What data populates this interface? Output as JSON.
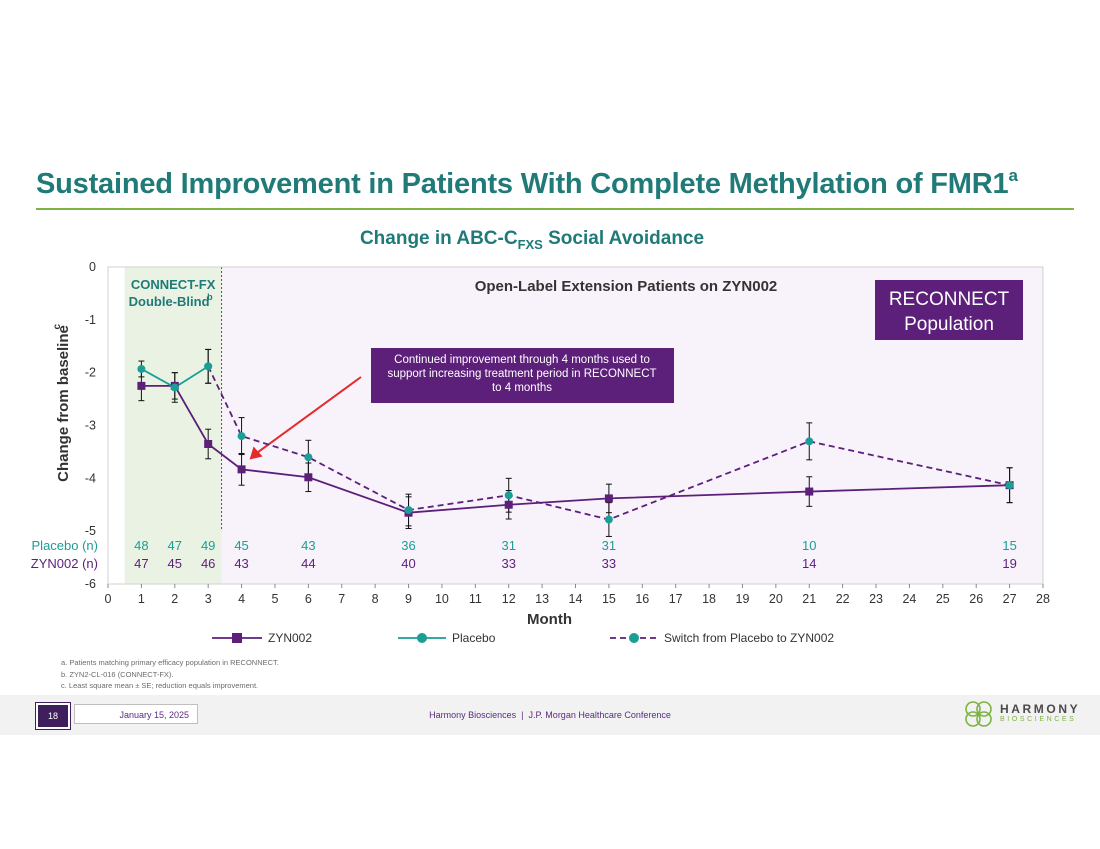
{
  "title": {
    "text": "Sustained Improvement in Patients With Complete Methylation of FMR1",
    "sup": "a"
  },
  "chart_title": {
    "pre": "Change in ABC-C",
    "sub": "FXS",
    "post": " Social Avoidance"
  },
  "chart_data": {
    "type": "line",
    "xlabel": "Month",
    "ylabel": "Change from baseline",
    "ylabel_sup": "c",
    "xlim": [
      0,
      28
    ],
    "ylim": [
      -6,
      0
    ],
    "xticks": [
      0,
      1,
      2,
      3,
      4,
      5,
      6,
      7,
      8,
      9,
      10,
      11,
      12,
      13,
      14,
      15,
      16,
      17,
      18,
      19,
      20,
      21,
      22,
      23,
      24,
      25,
      26,
      27,
      28
    ],
    "yticks": [
      0,
      -1,
      -2,
      -3,
      -4,
      -5,
      -6
    ],
    "regions": {
      "double_blind": {
        "label": "CONNECT-FX",
        "label2": "Double-Blind",
        "label_sup": "b",
        "x_range": [
          0.5,
          3.4
        ],
        "color": "#eaf3e3"
      },
      "ole": {
        "label": "Open-Label Extension Patients on ZYN002",
        "x_range": [
          3.4,
          28
        ],
        "color": "#f8f2fb"
      }
    },
    "series": [
      {
        "name": "ZYN002",
        "style": "solid",
        "marker": "square",
        "color": "#5c1f7a",
        "points": [
          {
            "x": 1,
            "y": -2.25,
            "err": 0.28
          },
          {
            "x": 2,
            "y": -2.25,
            "err": 0.25
          },
          {
            "x": 3,
            "y": -3.35,
            "err": 0.28
          },
          {
            "x": 4,
            "y": -3.83,
            "err": 0.3
          },
          {
            "x": 6,
            "y": -3.98,
            "err": 0.27
          },
          {
            "x": 9,
            "y": -4.65,
            "err": 0.3
          },
          {
            "x": 12,
            "y": -4.5,
            "err": 0.27
          },
          {
            "x": 15,
            "y": -4.38,
            "err": 0.27
          },
          {
            "x": 21,
            "y": -4.25,
            "err": 0.28
          },
          {
            "x": 27,
            "y": -4.13,
            "err": 0.33
          }
        ]
      },
      {
        "name": "Placebo",
        "style": "solid",
        "marker": "circle",
        "color": "#1a9e95",
        "points": [
          {
            "x": 1,
            "y": -1.93,
            "err": 0.15
          },
          {
            "x": 2,
            "y": -2.28,
            "err": 0.28
          },
          {
            "x": 3,
            "y": -1.88,
            "err": 0.32
          }
        ]
      },
      {
        "name": "Switch from Placebo to ZYN002",
        "style": "dashed",
        "marker": "circle",
        "color": "#5c1f7a",
        "marker_color": "#1a9e95",
        "points": [
          {
            "x": 3,
            "y": -1.88,
            "err": 0.32
          },
          {
            "x": 4,
            "y": -3.2,
            "err": 0.35
          },
          {
            "x": 6,
            "y": -3.6,
            "err": 0.32
          },
          {
            "x": 9,
            "y": -4.6,
            "err": 0.3
          },
          {
            "x": 12,
            "y": -4.32,
            "err": 0.32
          },
          {
            "x": 15,
            "y": -4.78,
            "err": 0.32
          },
          {
            "x": 21,
            "y": -3.3,
            "err": 0.35
          },
          {
            "x": 27,
            "y": -4.13,
            "err": 0.33
          }
        ]
      }
    ],
    "n_table": {
      "months": [
        1,
        2,
        3,
        4,
        6,
        9,
        12,
        15,
        21,
        27
      ],
      "rows": [
        {
          "label": "Placebo (n)",
          "color": "#1a9e95",
          "values": [
            48,
            47,
            49,
            45,
            43,
            36,
            31,
            31,
            10,
            15
          ]
        },
        {
          "label": "ZYN002 (n)",
          "color": "#5c1f7a",
          "values": [
            47,
            45,
            46,
            43,
            44,
            40,
            33,
            33,
            14,
            19
          ]
        }
      ]
    },
    "annotations": {
      "callout": "Continued improvement through 4 months used to support increasing treatment period in RECONNECT to 4 months",
      "callout_target": {
        "x": 4,
        "y": -3.7
      },
      "badge_line1": "RECONNECT",
      "badge_line2": "Population"
    },
    "legend_position": "bottom"
  },
  "footnotes": [
    "a. Patients matching primary efficacy population in RECONNECT.",
    "b. ZYN2-CL-016 (CONNECT-FX).",
    "c. Least square mean ± SE; reduction equals improvement."
  ],
  "footer": {
    "page": "18",
    "date": "January 15, 2025",
    "center": "Harmony Biosciences  |  J.P. Morgan Healthcare Conference",
    "logo_word": "HARMONY",
    "logo_sub": "BIOSCIENCES"
  },
  "colors": {
    "teal_title": "#1f7a78",
    "purple": "#5c1f7a",
    "teal": "#1a9e95",
    "green_rule": "#7cb342",
    "badge_bg": "#5c1f7a",
    "callout_bg": "#5c1f7a",
    "arrow": "#e32b2b"
  }
}
